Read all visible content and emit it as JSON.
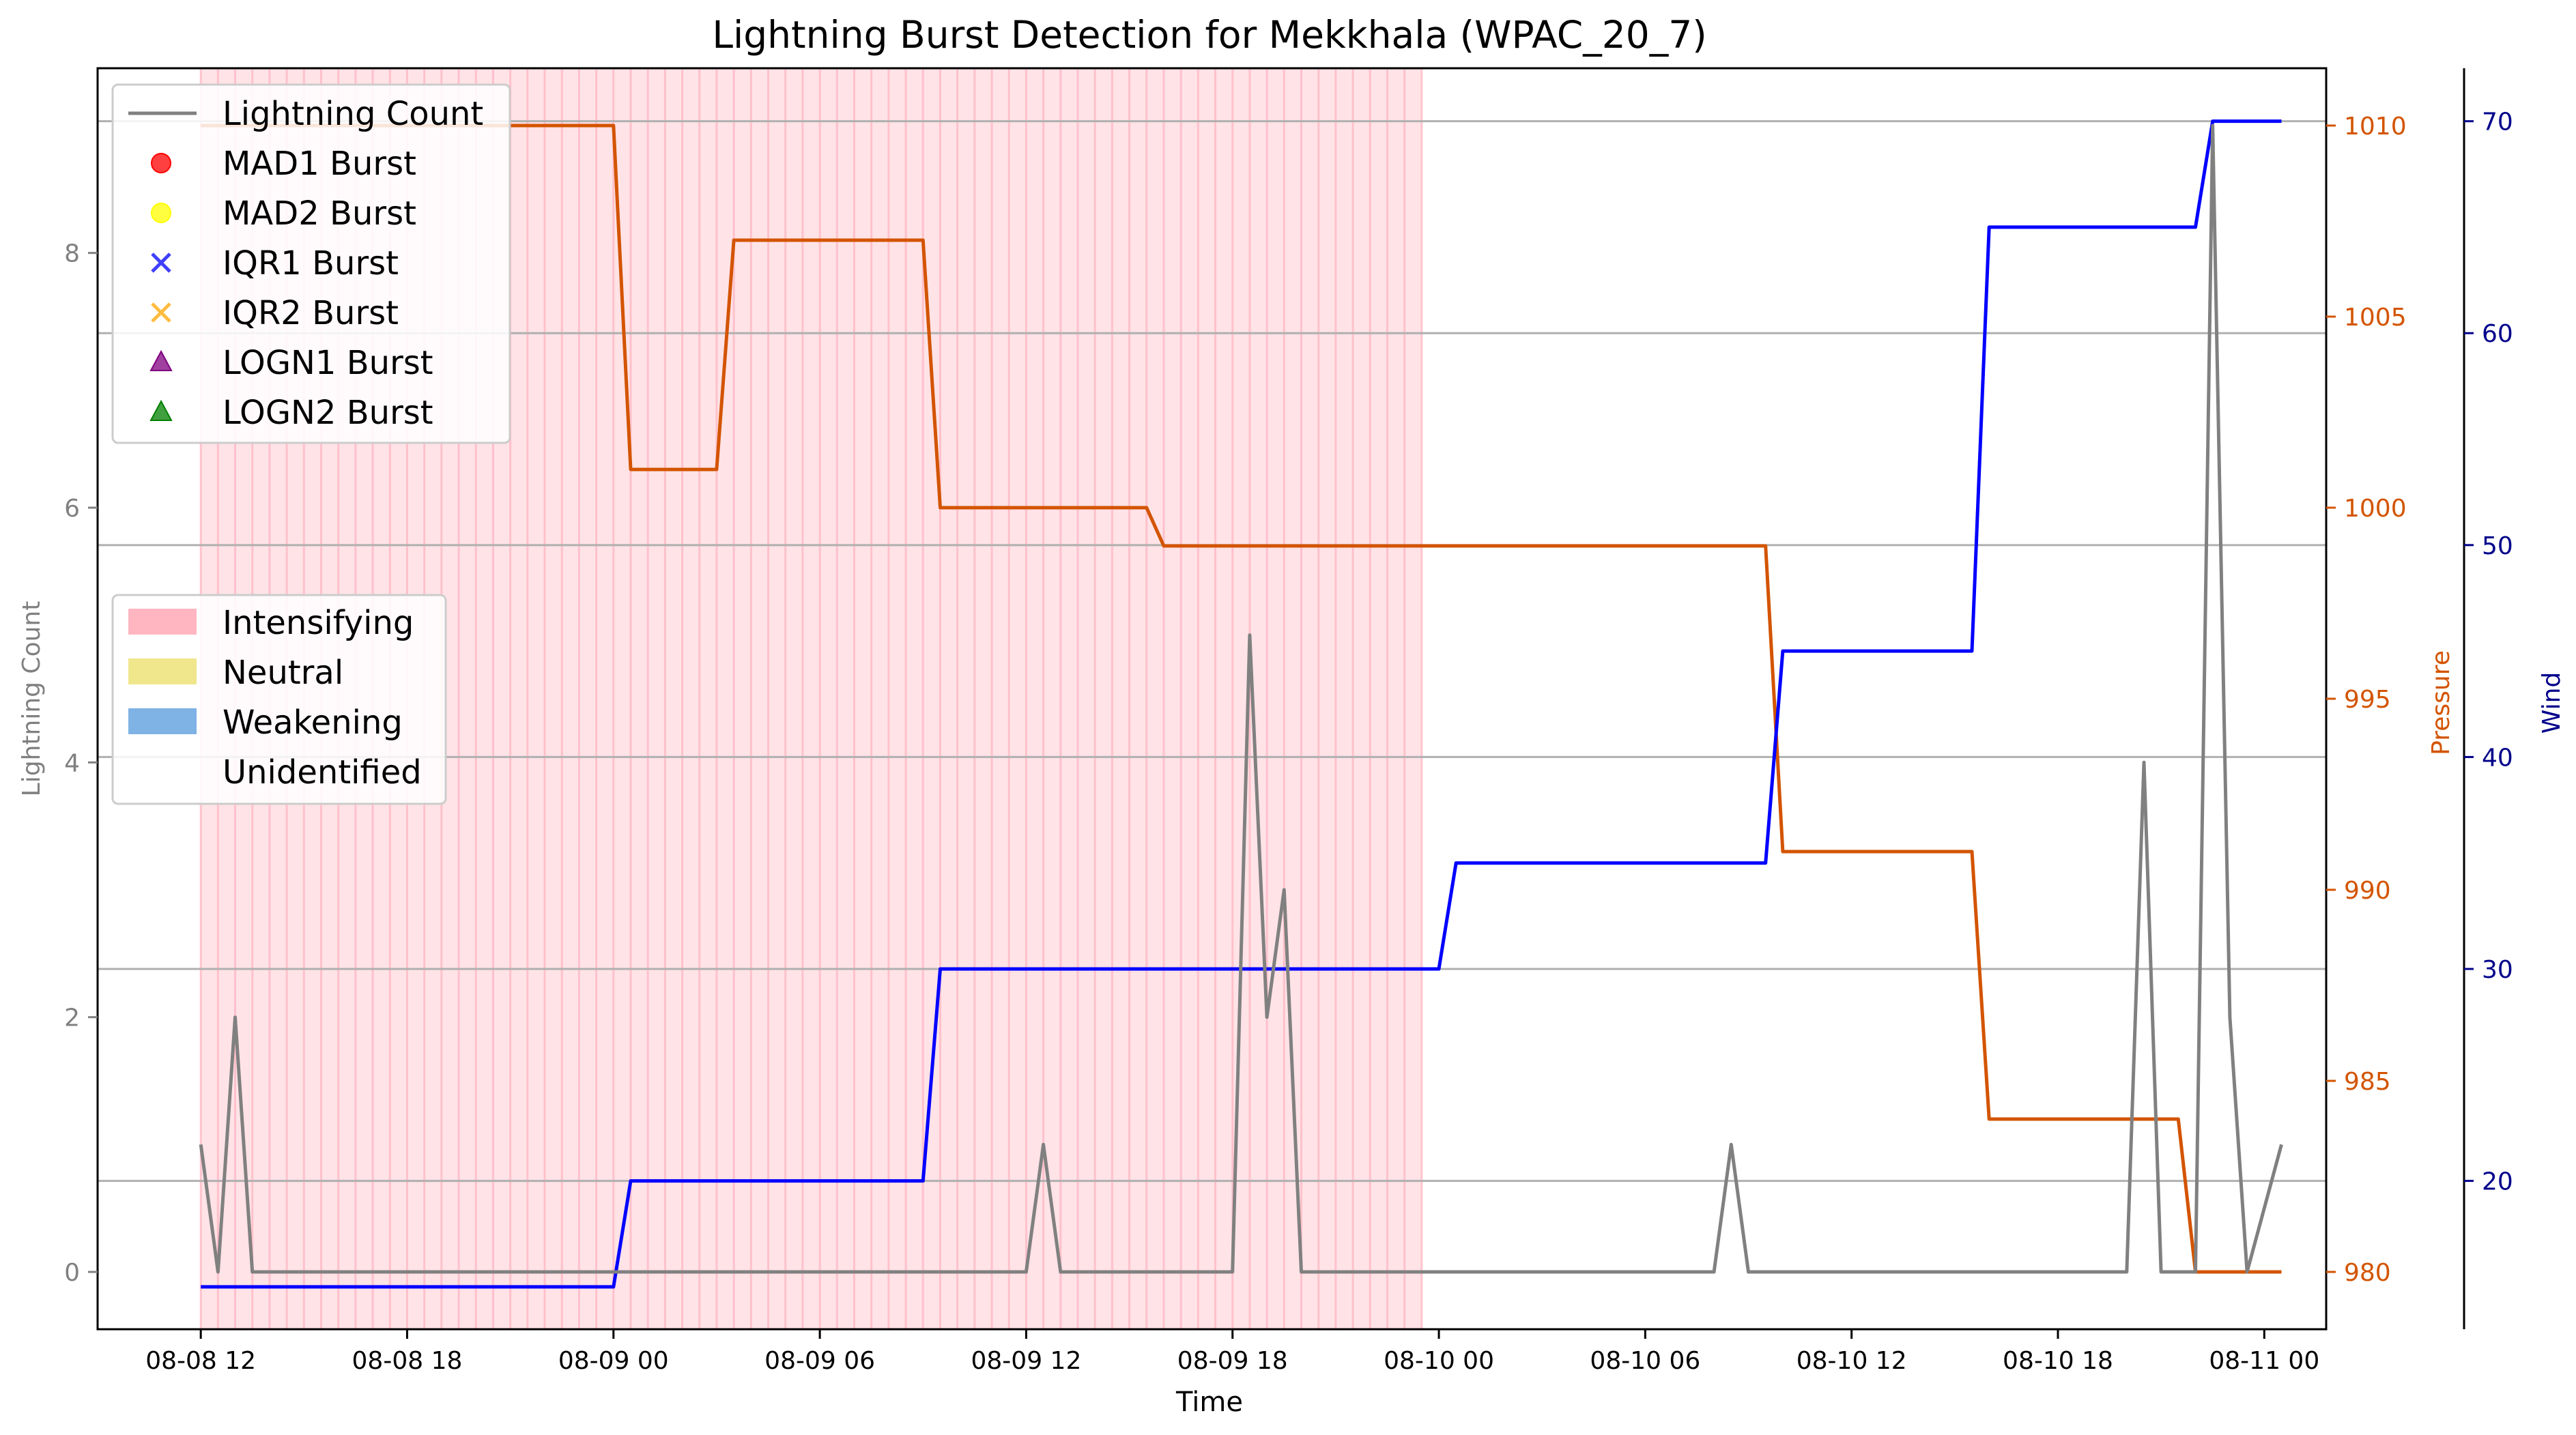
{
  "chart_data": {
    "type": "line",
    "title": "Lightning Burst Detection for Mekkhala (WPAC_20_7)",
    "xlabel": "Time",
    "ylabel_left": "Lightning Count",
    "ylabel_pressure": "Pressure",
    "ylabel_wind": "Wind",
    "x_ticks": [
      "08-08 12",
      "08-08 18",
      "08-09 00",
      "08-09 06",
      "08-09 12",
      "08-09 18",
      "08-10 00",
      "08-10 06",
      "08-10 12",
      "08-10 18",
      "08-11 00"
    ],
    "x_tick_hours": [
      12,
      18,
      24,
      30,
      36,
      42,
      48,
      54,
      60,
      66,
      72
    ],
    "x_range_hours": [
      9.0,
      73.8
    ],
    "y_left": {
      "ticks": [
        0,
        2,
        4,
        6,
        8
      ],
      "range": [
        -0.45,
        9.45
      ]
    },
    "y_pressure": {
      "ticks": [
        980,
        985,
        990,
        995,
        1000,
        1005,
        1010
      ],
      "range": [
        978.5,
        1011.5
      ]
    },
    "y_wind": {
      "ticks": [
        20,
        30,
        40,
        50,
        60,
        70
      ],
      "range": [
        13.0,
        72.5
      ]
    },
    "grid": "horizontal at wind ticks",
    "intensifying_span_hours": [
      12.0,
      47.5
    ],
    "series": [
      {
        "name": "Lightning Count",
        "axis": "left",
        "color": "#808080",
        "points": [
          [
            12,
            1
          ],
          [
            12.5,
            0
          ],
          [
            13,
            2
          ],
          [
            13.5,
            0
          ],
          [
            36,
            0
          ],
          [
            36.5,
            1
          ],
          [
            37,
            0
          ],
          [
            42,
            0
          ],
          [
            42.5,
            5
          ],
          [
            43,
            2
          ],
          [
            43.5,
            3
          ],
          [
            44,
            0
          ],
          [
            56,
            0
          ],
          [
            56.5,
            1
          ],
          [
            57,
            0
          ],
          [
            68,
            0
          ],
          [
            68.5,
            4
          ],
          [
            69,
            0
          ],
          [
            70,
            0
          ],
          [
            70.5,
            9
          ],
          [
            71,
            2
          ],
          [
            71.5,
            0
          ],
          [
            72.5,
            1
          ]
        ]
      },
      {
        "name": "Pressure",
        "axis": "pressure",
        "color": "#d35400",
        "points": [
          [
            12,
            1010
          ],
          [
            24,
            1010
          ],
          [
            24.5,
            1001
          ],
          [
            27,
            1001
          ],
          [
            27.5,
            1007
          ],
          [
            33,
            1007
          ],
          [
            33.5,
            1000
          ],
          [
            39.5,
            1000
          ],
          [
            40,
            999
          ],
          [
            57.5,
            999
          ],
          [
            58,
            991
          ],
          [
            63.5,
            991
          ],
          [
            64,
            984
          ],
          [
            69.5,
            984
          ],
          [
            70,
            980
          ],
          [
            72.5,
            980
          ]
        ]
      },
      {
        "name": "Wind",
        "axis": "wind",
        "color": "#0000ff",
        "points": [
          [
            12,
            15
          ],
          [
            24,
            15
          ],
          [
            24.5,
            20
          ],
          [
            33,
            20
          ],
          [
            33.5,
            30
          ],
          [
            48,
            30
          ],
          [
            48.5,
            35
          ],
          [
            57.5,
            35
          ],
          [
            58,
            45
          ],
          [
            63.5,
            45
          ],
          [
            64,
            65
          ],
          [
            70,
            65
          ],
          [
            70.5,
            70
          ],
          [
            72.5,
            70
          ]
        ]
      }
    ],
    "legend_top": {
      "position": "upper-left",
      "entries": [
        {
          "label": "Lightning Count",
          "marker": "line",
          "color": "#808080"
        },
        {
          "label": "MAD1 Burst",
          "marker": "circle",
          "color": "#ff0000"
        },
        {
          "label": "MAD2 Burst",
          "marker": "circle",
          "color": "#ffff00"
        },
        {
          "label": "IQR1 Burst",
          "marker": "x",
          "color": "#0000ff"
        },
        {
          "label": "IQR2 Burst",
          "marker": "x",
          "color": "#ffa500"
        },
        {
          "label": "LOGN1 Burst",
          "marker": "triangle",
          "color": "#800080"
        },
        {
          "label": "LOGN2 Burst",
          "marker": "triangle",
          "color": "#008000"
        }
      ]
    },
    "legend_phase": {
      "position": "center-left",
      "entries": [
        {
          "label": "Intensifying",
          "color": "#ffb6c1"
        },
        {
          "label": "Neutral",
          "color": "#f0e68c"
        },
        {
          "label": "Weakening",
          "color": "#7fb2e5"
        },
        {
          "label": "Unidentified",
          "color": "#ffffff"
        }
      ]
    }
  }
}
